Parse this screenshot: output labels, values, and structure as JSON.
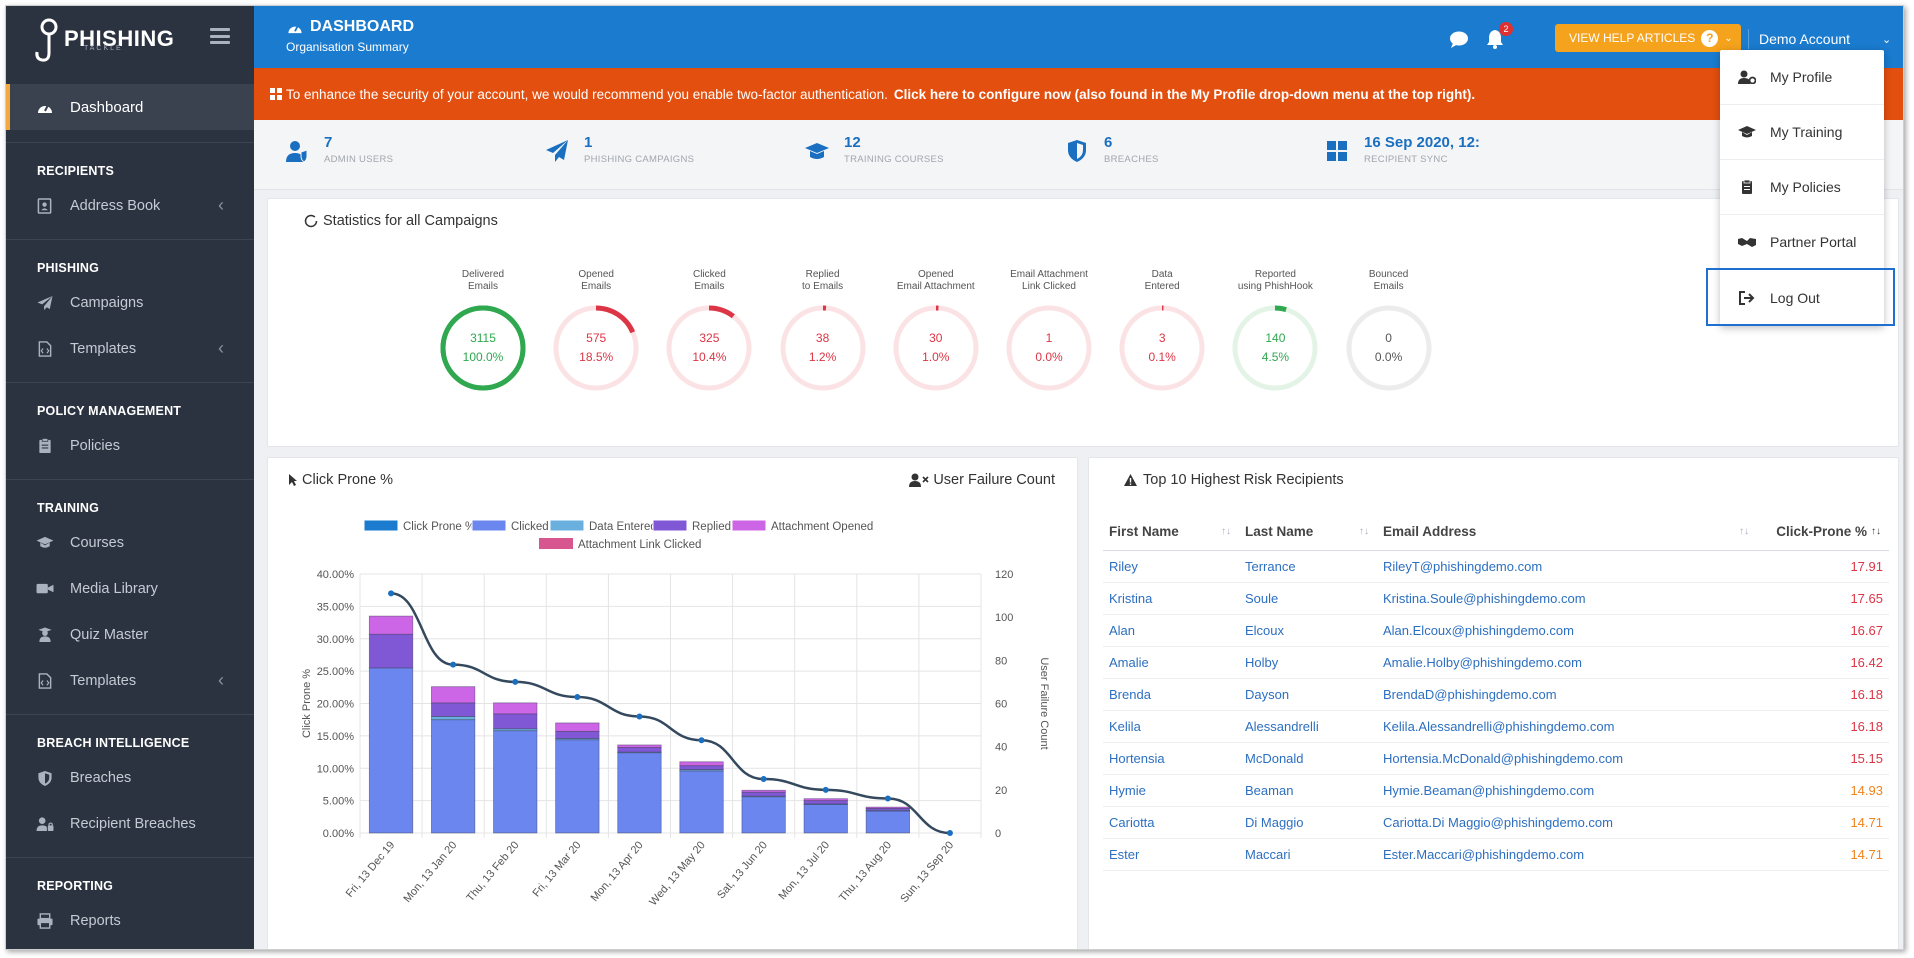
{
  "brand": {
    "name": "PHISHING",
    "sub": "TACKLE"
  },
  "sidebar": {
    "active": "Dashboard",
    "sections": [
      {
        "heading": "RECIPIENTS",
        "items": [
          {
            "label": "Address Book",
            "icon": "address-book-icon",
            "chevron": true
          }
        ]
      },
      {
        "heading": "PHISHING",
        "items": [
          {
            "label": "Campaigns",
            "icon": "paper-plane-icon",
            "chevron": false
          },
          {
            "label": "Templates",
            "icon": "file-code-icon",
            "chevron": true
          }
        ]
      },
      {
        "heading": "POLICY MANAGEMENT",
        "items": [
          {
            "label": "Policies",
            "icon": "clipboard-icon",
            "chevron": false
          }
        ]
      },
      {
        "heading": "TRAINING",
        "items": [
          {
            "label": "Courses",
            "icon": "graduation-cap-icon",
            "chevron": false
          },
          {
            "label": "Media Library",
            "icon": "video-icon",
            "chevron": false
          },
          {
            "label": "Quiz Master",
            "icon": "user-graduate-icon",
            "chevron": false
          },
          {
            "label": "Templates",
            "icon": "file-code-icon",
            "chevron": true
          }
        ]
      },
      {
        "heading": "BREACH INTELLIGENCE",
        "items": [
          {
            "label": "Breaches",
            "icon": "shield-icon",
            "chevron": false
          },
          {
            "label": "Recipient Breaches",
            "icon": "user-lock-icon",
            "chevron": false
          }
        ]
      },
      {
        "heading": "REPORTING",
        "items": [
          {
            "label": "Reports",
            "icon": "printer-icon",
            "chevron": false
          }
        ]
      }
    ]
  },
  "header": {
    "title": "DASHBOARD",
    "subtitle": "Organisation Summary",
    "notification_count": "2",
    "help_label": "VIEW HELP ARTICLES",
    "account_label": "Demo Account"
  },
  "alert": {
    "text": "To enhance the security of your account, we would recommend you enable two-factor authentication.",
    "link": "Click here to configure now (also found in the My Profile drop-down menu at the top right)."
  },
  "summary": [
    {
      "value": "7",
      "label": "ADMIN USERS",
      "icon": "user-shield-icon"
    },
    {
      "value": "1",
      "label": "PHISHING CAMPAIGNS",
      "icon": "paper-plane-icon"
    },
    {
      "value": "12",
      "label": "TRAINING COURSES",
      "icon": "graduation-cap-icon"
    },
    {
      "value": "6",
      "label": "BREACHES",
      "icon": "shield-icon"
    },
    {
      "value": "16 Sep 2020, 12:",
      "label": "RECIPIENT SYNC",
      "icon": "windows-icon"
    }
  ],
  "statistics": {
    "title": "Statistics for all Campaigns",
    "gauges": [
      {
        "l1": "Delivered",
        "l2": "Emails",
        "count": "3115",
        "pct": "100.0%",
        "fraction": 1.0,
        "color": "#2fa84f",
        "track": "#2fa84f"
      },
      {
        "l1": "Opened",
        "l2": "Emails",
        "count": "575",
        "pct": "18.5%",
        "fraction": 0.185,
        "color": "#dc3545",
        "track": "#fbe3e5"
      },
      {
        "l1": "Clicked",
        "l2": "Emails",
        "count": "325",
        "pct": "10.4%",
        "fraction": 0.104,
        "color": "#dc3545",
        "track": "#fbe3e5"
      },
      {
        "l1": "Replied",
        "l2": "to Emails",
        "count": "38",
        "pct": "1.2%",
        "fraction": 0.012,
        "color": "#dc3545",
        "track": "#fbe3e5"
      },
      {
        "l1": "Opened",
        "l2": "Email Attachment",
        "count": "30",
        "pct": "1.0%",
        "fraction": 0.01,
        "color": "#dc3545",
        "track": "#fbe3e5"
      },
      {
        "l1": "Email Attachment",
        "l2": "Link Clicked",
        "count": "1",
        "pct": "0.0%",
        "fraction": 0.0,
        "color": "#dc3545",
        "track": "#fbe3e5"
      },
      {
        "l1": "Data",
        "l2": "Entered",
        "count": "3",
        "pct": "0.1%",
        "fraction": 0.001,
        "color": "#dc3545",
        "track": "#fbe3e5"
      },
      {
        "l1": "Reported",
        "l2": "using PhishHook",
        "count": "140",
        "pct": "4.5%",
        "fraction": 0.045,
        "color": "#2fa84f",
        "track": "#e3f4e7"
      },
      {
        "l1": "Bounced",
        "l2": "Emails",
        "count": "0",
        "pct": "0.0%",
        "fraction": 0.0,
        "color": "#777777",
        "track": "#ececec"
      }
    ]
  },
  "click_prone": {
    "title": "Click Prone %",
    "user_failure_label": "User Failure Count"
  },
  "chart_data": {
    "type": "bar",
    "stacked": true,
    "legend_position": "top",
    "categories": [
      "Fri, 13 Dec 19",
      "Mon, 13 Jan 20",
      "Thu, 13 Feb 20",
      "Fri, 13 Mar 20",
      "Mon, 13 Apr 20",
      "Wed, 13 May 20",
      "Sat, 13 Jun 20",
      "Mon, 13 Jul 20",
      "Thu, 13 Aug 20",
      "Sun, 13 Sep 20"
    ],
    "ylabel": "Click Prone %",
    "y2label": "User Failure Count",
    "ylim": [
      0,
      40
    ],
    "y2lim": [
      0,
      120
    ],
    "yticks": [
      "0.00%",
      "5.00%",
      "10.00%",
      "15.00%",
      "20.00%",
      "25.00%",
      "30.00%",
      "35.00%",
      "40.00%"
    ],
    "y2ticks": [
      "0",
      "20",
      "40",
      "60",
      "80",
      "100",
      "120"
    ],
    "series": [
      {
        "name": "Clicked",
        "color": "#6b86ee",
        "values": [
          25.5,
          17.5,
          15.8,
          14.4,
          12.4,
          9.6,
          5.6,
          4.4,
          3.4,
          0
        ]
      },
      {
        "name": "Data Entered",
        "color": "#6ab0df",
        "values": [
          0.0,
          0.5,
          0.3,
          0.2,
          0.1,
          0.2,
          0.1,
          0.1,
          0.1,
          0
        ]
      },
      {
        "name": "Replied",
        "color": "#8058d6",
        "values": [
          5.2,
          2.1,
          2.3,
          1.1,
          0.7,
          0.6,
          0.6,
          0.5,
          0.3,
          0
        ]
      },
      {
        "name": "Attachment Opened",
        "color": "#cc66e6",
        "values": [
          2.8,
          2.5,
          1.7,
          1.3,
          0.4,
          0.6,
          0.3,
          0.3,
          0.2,
          0
        ]
      },
      {
        "name": "Attachment Link Clicked",
        "color": "#d7568f",
        "values": [
          0,
          0,
          0,
          0,
          0,
          0,
          0,
          0,
          0,
          0
        ]
      }
    ],
    "line": {
      "name": "Click Prone %",
      "color": "#34495e",
      "axis": "right",
      "values": [
        111,
        78,
        70,
        63,
        54,
        43,
        25,
        20,
        16,
        0
      ]
    },
    "grid": true
  },
  "risk": {
    "title": "Top 10 Highest Risk Recipients",
    "columns": [
      "First Name",
      "Last Name",
      "Email Address",
      "Click-Prone %"
    ],
    "rows": [
      {
        "first": "Riley",
        "last": "Terrance",
        "email": "RileyT@phishingdemo.com",
        "cp": "17.91",
        "color": "#dc3545"
      },
      {
        "first": "Kristina",
        "last": "Soule",
        "email": "Kristina.Soule@phishingdemo.com",
        "cp": "17.65",
        "color": "#dc3545"
      },
      {
        "first": "Alan",
        "last": "Elcoux",
        "email": "Alan.Elcoux@phishingdemo.com",
        "cp": "16.67",
        "color": "#dc3545"
      },
      {
        "first": "Amalie",
        "last": "Holby",
        "email": "Amalie.Holby@phishingdemo.com",
        "cp": "16.42",
        "color": "#dc3545"
      },
      {
        "first": "Brenda",
        "last": "Dayson",
        "email": "BrendaD@phishingdemo.com",
        "cp": "16.18",
        "color": "#dc3545"
      },
      {
        "first": "Kelila",
        "last": "Alessandrelli",
        "email": "Kelila.Alessandrelli@phishingdemo.com",
        "cp": "16.18",
        "color": "#dc3545"
      },
      {
        "first": "Hortensia",
        "last": "McDonald",
        "email": "Hortensia.McDonald@phishingdemo.com",
        "cp": "15.15",
        "color": "#dc3545"
      },
      {
        "first": "Hymie",
        "last": "Beaman",
        "email": "Hymie.Beaman@phishingdemo.com",
        "cp": "14.93",
        "color": "#f0831f"
      },
      {
        "first": "Cariotta",
        "last": "Di Maggio",
        "email": "Cariotta.Di Maggio@phishingdemo.com",
        "cp": "14.71",
        "color": "#f0831f"
      },
      {
        "first": "Ester",
        "last": "Maccari",
        "email": "Ester.Maccari@phishingdemo.com",
        "cp": "14.71",
        "color": "#f0831f"
      }
    ]
  },
  "account_menu": {
    "items": [
      {
        "label": "My Profile",
        "icon": "user-cog-icon"
      },
      {
        "label": "My Training",
        "icon": "graduation-cap-icon"
      },
      {
        "label": "My Policies",
        "icon": "clipboard-icon"
      },
      {
        "label": "Partner Portal",
        "icon": "handshake-icon"
      },
      {
        "label": "Log Out",
        "icon": "sign-out-icon"
      }
    ]
  }
}
